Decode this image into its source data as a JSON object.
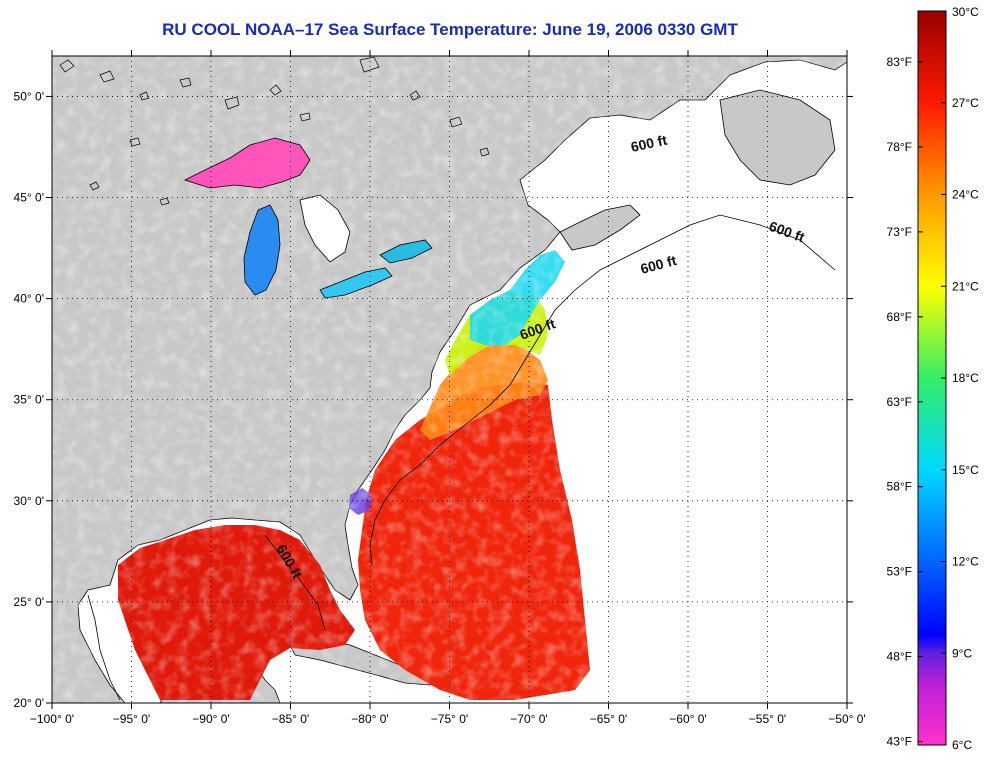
{
  "title": "RU COOL  NOAA–17  Sea Surface Temperature:  June 19, 2006 0330 GMT",
  "map": {
    "lon_range": [
      -100,
      -50
    ],
    "lat_range": [
      20,
      52
    ],
    "lon_ticks": [
      {
        "value": -100,
        "label": "−100° 0'"
      },
      {
        "value": -95,
        "label": "−95° 0'"
      },
      {
        "value": -90,
        "label": "−90° 0'"
      },
      {
        "value": -85,
        "label": "−85° 0'"
      },
      {
        "value": -80,
        "label": "−80° 0'"
      },
      {
        "value": -75,
        "label": "−75° 0'"
      },
      {
        "value": -70,
        "label": "−70° 0'"
      },
      {
        "value": -65,
        "label": "−65° 0'"
      },
      {
        "value": -60,
        "label": "−60° 0'"
      },
      {
        "value": -55,
        "label": "−55° 0'"
      },
      {
        "value": -50,
        "label": "−50° 0'"
      }
    ],
    "lat_ticks": [
      {
        "value": 50,
        "label": "50° 0'"
      },
      {
        "value": 45,
        "label": "45° 0'"
      },
      {
        "value": 40,
        "label": "40° 0'"
      },
      {
        "value": 35,
        "label": "35° 0'"
      },
      {
        "value": 30,
        "label": "30° 0'"
      },
      {
        "value": 25,
        "label": "25° 0'"
      },
      {
        "value": 20,
        "label": "20° 0'"
      }
    ],
    "contour_label": "600 ft",
    "colors": {
      "land": "#c8c8c8",
      "ocean_nodata": "#ffffff",
      "coast": "#000000"
    }
  },
  "colorbar": {
    "min_c": 6,
    "max_c": 30,
    "celsius_ticks": [
      {
        "value": 30,
        "label": "30°C"
      },
      {
        "value": 27,
        "label": "27°C"
      },
      {
        "value": 24,
        "label": "24°C"
      },
      {
        "value": 21,
        "label": "21°C"
      },
      {
        "value": 18,
        "label": "18°C"
      },
      {
        "value": 15,
        "label": "15°C"
      },
      {
        "value": 12,
        "label": "12°C"
      },
      {
        "value": 9,
        "label": "9°C"
      },
      {
        "value": 6,
        "label": "6°C"
      }
    ],
    "fahrenheit_ticks": [
      {
        "value": 83,
        "label": "83°F"
      },
      {
        "value": 78,
        "label": "78°F"
      },
      {
        "value": 73,
        "label": "73°F"
      },
      {
        "value": 68,
        "label": "68°F"
      },
      {
        "value": 63,
        "label": "63°F"
      },
      {
        "value": 58,
        "label": "58°F"
      },
      {
        "value": 53,
        "label": "53°F"
      },
      {
        "value": 48,
        "label": "48°F"
      },
      {
        "value": 43,
        "label": "43°F"
      }
    ]
  }
}
